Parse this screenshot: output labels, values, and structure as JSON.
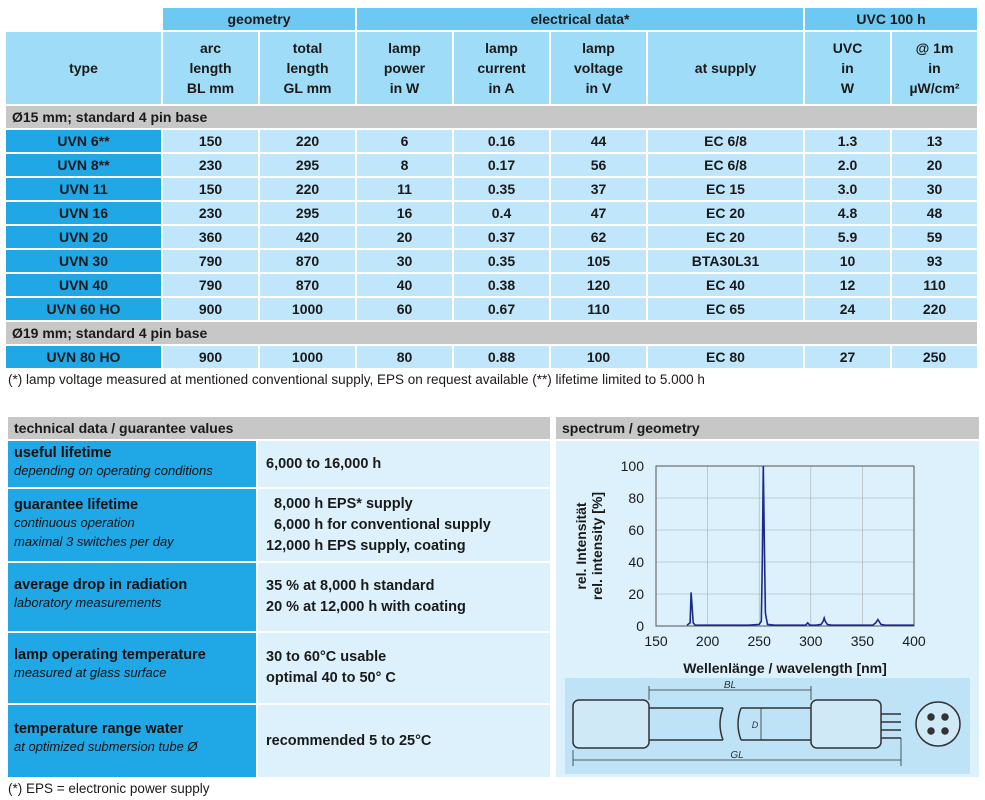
{
  "table": {
    "group_headers": {
      "geometry": "geometry",
      "electrical": "electrical data*",
      "uvc": "UVC  100 h"
    },
    "columns": {
      "type": "type",
      "arc": [
        "arc",
        "length",
        "BL mm"
      ],
      "total": [
        "total",
        "length",
        "GL mm"
      ],
      "power": [
        "lamp",
        "power",
        "in W"
      ],
      "current": [
        "lamp",
        "current",
        "in A"
      ],
      "voltage": [
        "lamp",
        "voltage",
        "in V"
      ],
      "supply": "at supply",
      "uvc": [
        "UVC",
        "in",
        "W"
      ],
      "at1m": [
        "@ 1m",
        "in",
        "µW/cm²"
      ]
    },
    "section1": "Ø15 mm; standard 4 pin base",
    "section2": "Ø19 mm; standard 4 pin base",
    "rows1": [
      [
        "UVN 6**",
        "150",
        "220",
        "6",
        "0.16",
        "44",
        "EC 6/8",
        "1.3",
        "13"
      ],
      [
        "UVN 8**",
        "230",
        "295",
        "8",
        "0.17",
        "56",
        "EC 6/8",
        "2.0",
        "20"
      ],
      [
        "UVN 11",
        "150",
        "220",
        "11",
        "0.35",
        "37",
        "EC 15",
        "3.0",
        "30"
      ],
      [
        "UVN 16",
        "230",
        "295",
        "16",
        "0.4",
        "47",
        "EC 20",
        "4.8",
        "48"
      ],
      [
        "UVN 20",
        "360",
        "420",
        "20",
        "0.37",
        "62",
        "EC 20",
        "5.9",
        "59"
      ],
      [
        "UVN 30",
        "790",
        "870",
        "30",
        "0.35",
        "105",
        "BTA30L31",
        "10",
        "93"
      ],
      [
        "UVN 40",
        "790",
        "870",
        "40",
        "0.38",
        "120",
        "EC 40",
        "12",
        "110"
      ],
      [
        "UVN 60 HO",
        "900",
        "1000",
        "60",
        "0.67",
        "110",
        "EC 65",
        "24",
        "220"
      ]
    ],
    "rows2": [
      [
        "UVN 80 HO",
        "900",
        "1000",
        "80",
        "0.88",
        "100",
        "EC 80",
        "27",
        "250"
      ]
    ],
    "footnote": "(*) lamp voltage measured at mentioned conventional supply, EPS on request available   (**) lifetime limited to 5.000 h"
  },
  "tech": {
    "header": "technical data / guarantee values",
    "rows": [
      {
        "title": "useful lifetime",
        "sub": [
          "depending on operating conditions"
        ],
        "values": [
          "6,000 to 16,000 h"
        ]
      },
      {
        "title": "guarantee lifetime",
        "sub": [
          "continuous operation",
          "maximal 3 switches per day"
        ],
        "values": [
          "  8,000 h EPS* supply",
          "  6,000 h for conventional supply",
          "12,000 h EPS supply, coating"
        ]
      },
      {
        "title": "average drop in radiation",
        "sub": [
          "laboratory measurements"
        ],
        "values": [
          "35 % at 8,000 h standard",
          "20 % at 12,000 h with coating"
        ]
      },
      {
        "title": "lamp operating temperature",
        "sub": [
          "measured at glass surface"
        ],
        "values": [
          "30 to 60°C usable",
          "optimal 40 to 50° C"
        ]
      },
      {
        "title": "temperature range water",
        "sub": [
          "at optimized submersion tube Ø"
        ],
        "values": [
          "recommended 5 to 25°C"
        ]
      }
    ],
    "footnote": "(*) EPS = electronic power supply"
  },
  "spectrum": {
    "header": "spectrum / geometry",
    "geometry_labels": {
      "bl": "BL",
      "gl": "GL",
      "d": "D"
    }
  },
  "chart_data": {
    "type": "line",
    "title": "",
    "xlabel": "Wellenlänge / wavelength [nm]",
    "ylabel": [
      "rel. Intensität",
      "rel. intensity [%]"
    ],
    "xlim": [
      150,
      400
    ],
    "ylim": [
      0,
      100
    ],
    "xticks": [
      "150",
      "200",
      "250",
      "300",
      "350",
      "400"
    ],
    "yticks": [
      "0",
      "20",
      "40",
      "60",
      "80",
      "100"
    ],
    "grid": true,
    "legend": "none",
    "color": "#1a2a8c",
    "series": [
      {
        "x": [
          180,
          183,
          184,
          185,
          186,
          188,
          200,
          220,
          240,
          250,
          252,
          253,
          254,
          255,
          256,
          258,
          265,
          280,
          295,
          297,
          299,
          305,
          310,
          312,
          313,
          314,
          316,
          320,
          340,
          360,
          363,
          365,
          366,
          368,
          372,
          390,
          400
        ],
        "y": [
          0.5,
          2,
          21,
          12,
          2,
          0.5,
          0.5,
          0.5,
          0.5,
          1,
          3,
          40,
          100,
          50,
          8,
          1,
          0.5,
          0.5,
          0.5,
          2,
          0.5,
          0.5,
          1,
          3,
          5,
          3,
          1,
          0.5,
          0.5,
          0.5,
          2,
          4,
          3,
          1,
          0.5,
          0.5,
          0.5
        ]
      }
    ]
  }
}
